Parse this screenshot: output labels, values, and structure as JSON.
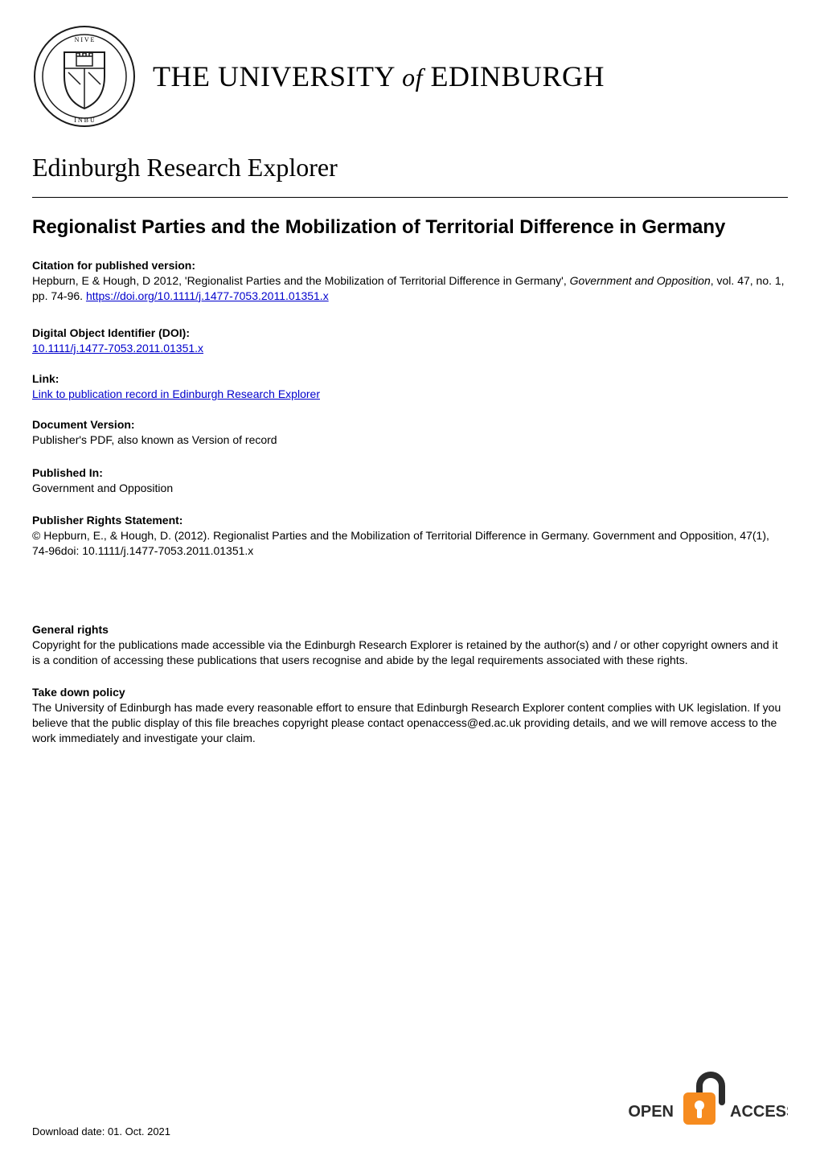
{
  "header": {
    "university_html": "THE UNIVERSITY <span class=\"of\">of</span> EDINBURGH",
    "crest_colors": {
      "outline": "#1a1a1a",
      "fill": "#ffffff"
    }
  },
  "explorer_title": "Edinburgh Research Explorer",
  "paper_title": "Regionalist Parties and the Mobilization of Territorial Difference in Germany",
  "sections": {
    "citation": {
      "heading": "Citation for published version:",
      "body_html": "Hepburn, E & Hough, D 2012, 'Regionalist Parties and the Mobilization of Territorial Difference in Germany', <span class=\"italic\">Government and Opposition</span>, vol. 47, no. 1, pp. 74-96. <a class=\"link\" data-name=\"doi-link\" data-interactable=\"true\">https://doi.org/10.1111/j.1477-7053.2011.01351.x</a>"
    },
    "doi": {
      "heading": "Digital Object Identifier (DOI):",
      "link_text": "10.1111/j.1477-7053.2011.01351.x"
    },
    "link_section": {
      "heading": "Link:",
      "link_text": "Link to publication record in Edinburgh Research Explorer"
    },
    "doc_version": {
      "heading": "Document Version:",
      "body": "Publisher's PDF, also known as Version of record"
    },
    "published_in": {
      "heading": "Published In:",
      "body": "Government and Opposition"
    },
    "rights": {
      "heading": "Publisher Rights Statement:",
      "body": "© Hepburn, E., & Hough, D. (2012). Regionalist Parties and the Mobilization of Territorial Difference in Germany. Government and Opposition, 47(1), 74-96doi: 10.1111/j.1477-7053.2011.01351.x"
    },
    "general_rights": {
      "heading": "General rights",
      "body": "Copyright for the publications made accessible via the Edinburgh Research Explorer is retained by the author(s) and / or other copyright owners and it is a condition of accessing these publications that users recognise and abide by the legal requirements associated with these rights."
    },
    "takedown": {
      "heading": "Take down policy",
      "body": "The University of Edinburgh has made every reasonable effort to ensure that Edinburgh Research Explorer content complies with UK legislation. If you believe that the public display of this file breaches copyright please contact openaccess@ed.ac.uk providing details, and we will remove access to the work immediately and investigate your claim."
    }
  },
  "footer": {
    "download_date": "Download date: 01. Oct. 2021",
    "open_access": {
      "text_open": "OPEN",
      "text_access": "ACCESS",
      "lock_body": "#f68b1f",
      "lock_shackle": "#2c2c2c",
      "text_color": "#2c2c2c",
      "text_fontsize": 20,
      "text_fontweight": "bold"
    }
  },
  "colors": {
    "text": "#000000",
    "background": "#ffffff",
    "link": "#0000cc",
    "rule": "#000000"
  },
  "typography": {
    "body_font": "Arial, Helvetica, sans-serif",
    "serif_font": "Georgia, 'Times New Roman', serif",
    "uni_title_size_pt": 27,
    "explorer_title_size_pt": 24,
    "paper_title_size_pt": 18,
    "section_heading_size_pt": 10.5,
    "body_size_pt": 10.5
  }
}
